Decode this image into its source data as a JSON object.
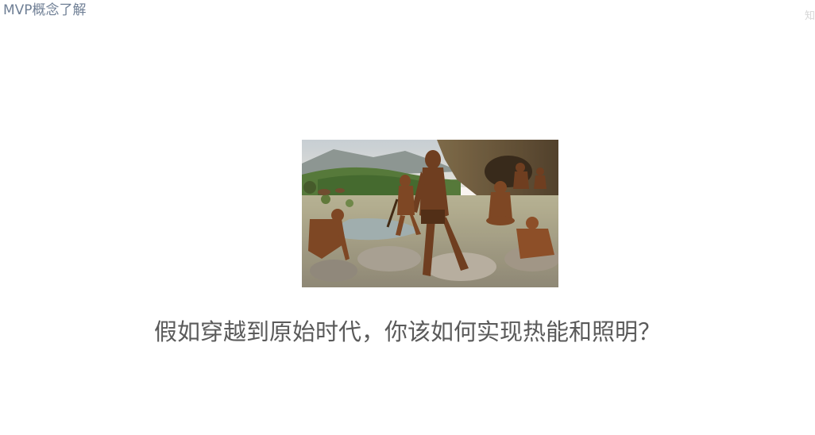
{
  "header": {
    "deck_title": "MVP概念了解",
    "corner_mark": "知"
  },
  "slide": {
    "question": "假如穿越到原始时代，你该如何实现热能和照明？"
  }
}
